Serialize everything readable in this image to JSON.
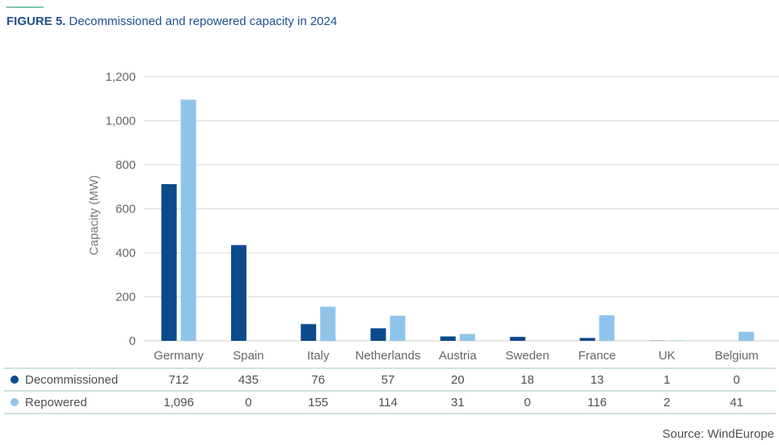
{
  "header": {
    "figure_label": "FIGURE 5.",
    "figure_title": "Decommissioned and repowered capacity in 2024"
  },
  "source_note": "Source: WindEurope",
  "colors": {
    "accent_line": "#7fc8a9",
    "title": "#1f4f8f",
    "decommissioned": "#0b4a8b",
    "repowered": "#8fc4ea",
    "grid": "#d9d9d9",
    "table_rule": "#9acbb0"
  },
  "chart_data": {
    "type": "bar",
    "title": "Decommissioned and repowered capacity in 2024",
    "xlabel": "",
    "ylabel": "Capacity (MW)",
    "ylim": [
      0,
      1200
    ],
    "yticks": [
      0,
      200,
      400,
      600,
      800,
      1000,
      1200
    ],
    "ytick_labels": [
      "0",
      "200",
      "400",
      "600",
      "800",
      "1,000",
      "1,200"
    ],
    "grid": true,
    "legend_placement": "table-below",
    "categories": [
      "Germany",
      "Spain",
      "Italy",
      "Netherlands",
      "Austria",
      "Sweden",
      "France",
      "UK",
      "Belgium"
    ],
    "series": [
      {
        "name": "Decommissioned",
        "values": [
          712,
          435,
          76,
          57,
          20,
          18,
          13,
          1,
          0
        ],
        "labels": [
          "712",
          "435",
          "76",
          "57",
          "20",
          "18",
          "13",
          "1",
          "0"
        ],
        "color": "#0b4a8b"
      },
      {
        "name": "Repowered",
        "values": [
          1096,
          0,
          155,
          114,
          31,
          0,
          116,
          2,
          41
        ],
        "labels": [
          "1,096",
          "0",
          "155",
          "114",
          "31",
          "0",
          "116",
          "2",
          "41"
        ],
        "color": "#8fc4ea"
      }
    ]
  }
}
